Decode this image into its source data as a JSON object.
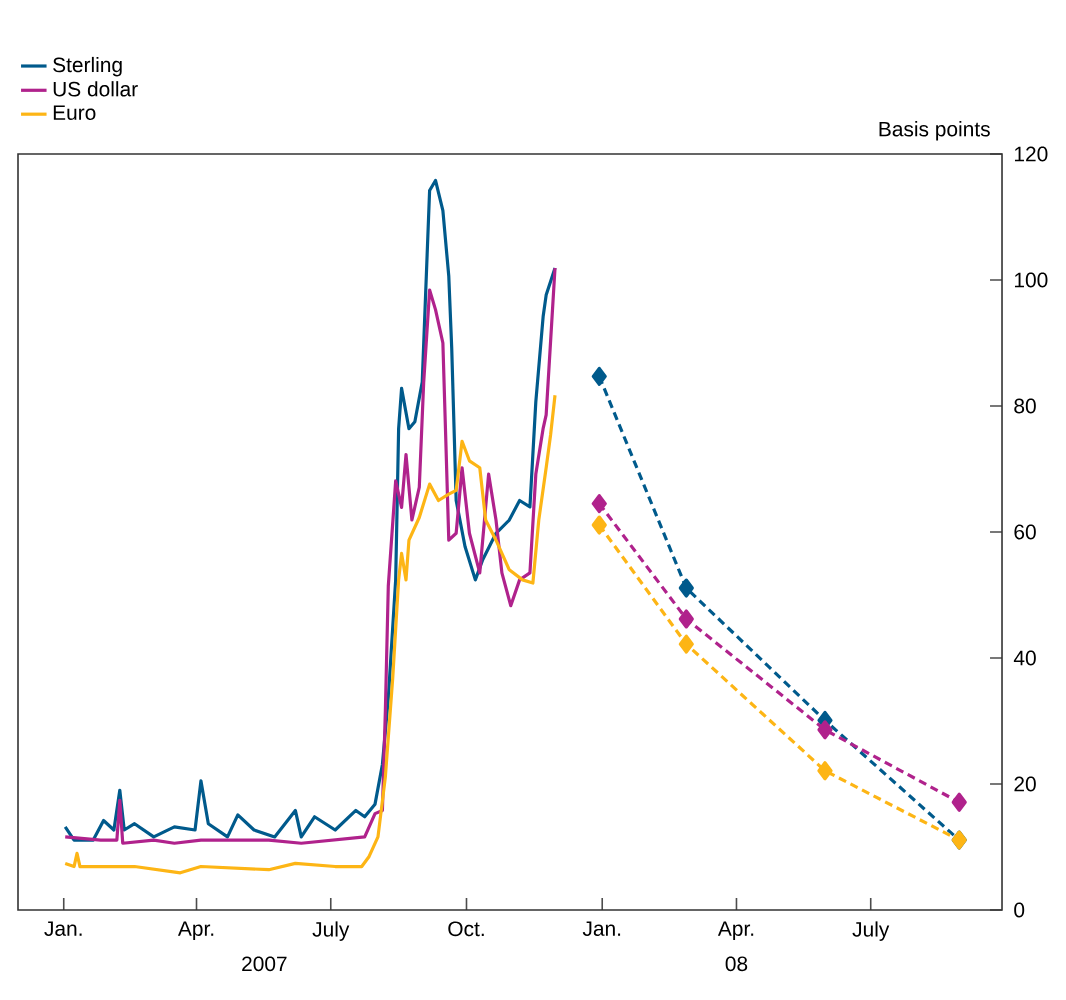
{
  "chart_data": {
    "type": "line",
    "ylabel": "Basis points",
    "legend": "top left",
    "grid": false,
    "xlim": [
      "2006-12-01",
      "2008-09-28"
    ],
    "ylim": [
      0,
      120
    ],
    "yticks": [
      0,
      20,
      40,
      60,
      80,
      100,
      120
    ],
    "xticks": [
      {
        "value": "2007-01-01",
        "label": "Jan."
      },
      {
        "value": "2007-04-01",
        "label": "Apr."
      },
      {
        "value": "2007-07-01",
        "label": "July"
      },
      {
        "value": "2007-10-01",
        "label": "Oct."
      },
      {
        "value": "2008-01-01",
        "label": "Jan."
      },
      {
        "value": "2008-04-01",
        "label": "Apr."
      },
      {
        "value": "2008-07-01",
        "label": "July"
      }
    ],
    "annotations": [
      "2007",
      "08"
    ],
    "series": [
      {
        "name": "Sterling",
        "color": "#005a8c",
        "x": [
          "2007-01-02",
          "2007-01-08",
          "2007-01-21",
          "2007-01-28",
          "2007-02-04",
          "2007-02-08",
          "2007-02-11",
          "2007-02-18",
          "2007-03-03",
          "2007-03-17",
          "2007-03-31",
          "2007-04-04",
          "2007-04-09",
          "2007-04-22",
          "2007-04-29",
          "2007-05-10",
          "2007-05-24",
          "2007-06-07",
          "2007-06-11",
          "2007-06-20",
          "2007-07-04",
          "2007-07-18",
          "2007-07-24",
          "2007-07-31",
          "2007-08-05",
          "2007-08-09",
          "2007-08-14",
          "2007-08-16",
          "2007-08-18",
          "2007-08-23",
          "2007-08-27",
          "2007-09-01",
          "2007-09-06",
          "2007-09-10",
          "2007-09-15",
          "2007-09-19",
          "2007-09-21",
          "2007-09-24",
          "2007-09-30",
          "2007-10-07",
          "2007-10-12",
          "2007-10-21",
          "2007-10-30",
          "2007-11-06",
          "2007-11-13",
          "2007-11-17",
          "2007-11-22",
          "2007-11-24",
          "2007-11-30"
        ],
        "values": [
          13.2,
          11.1,
          11.1,
          14.2,
          12.7,
          19.0,
          12.7,
          13.7,
          11.6,
          13.2,
          12.7,
          20.5,
          13.7,
          11.6,
          15.1,
          12.7,
          11.6,
          15.8,
          11.6,
          14.8,
          12.7,
          15.8,
          14.8,
          16.8,
          23.1,
          33.6,
          52.4,
          76.4,
          82.8,
          76.4,
          77.5,
          83.8,
          114.2,
          115.8,
          111.0,
          100.6,
          89.1,
          65.0,
          57.7,
          52.4,
          55.6,
          59.8,
          61.9,
          65.0,
          64.0,
          80.7,
          94.3,
          97.6,
          101.9
        ]
      },
      {
        "name": "US dollar",
        "color": "#b0228c",
        "x": [
          "2007-01-02",
          "2007-01-26",
          "2007-02-06",
          "2007-02-08",
          "2007-02-10",
          "2007-03-03",
          "2007-03-17",
          "2007-04-04",
          "2007-05-20",
          "2007-06-11",
          "2007-07-24",
          "2007-07-31",
          "2007-08-05",
          "2007-08-07",
          "2007-08-09",
          "2007-08-14",
          "2007-08-18",
          "2007-08-21",
          "2007-08-25",
          "2007-08-30",
          "2007-09-02",
          "2007-09-06",
          "2007-09-10",
          "2007-09-15",
          "2007-09-17",
          "2007-09-19",
          "2007-09-24",
          "2007-09-28",
          "2007-10-03",
          "2007-10-10",
          "2007-10-16",
          "2007-10-21",
          "2007-10-25",
          "2007-10-31",
          "2007-11-06",
          "2007-11-13",
          "2007-11-17",
          "2007-11-22",
          "2007-11-24",
          "2007-11-30"
        ],
        "values": [
          11.6,
          11.1,
          11.1,
          17.4,
          10.6,
          11.1,
          10.6,
          11.1,
          11.1,
          10.6,
          11.6,
          15.3,
          15.8,
          31.5,
          51.4,
          68.1,
          63.9,
          72.3,
          61.9,
          67.1,
          83.8,
          98.4,
          95.3,
          90.0,
          74.4,
          58.7,
          59.8,
          70.2,
          59.8,
          53.5,
          69.2,
          61.9,
          53.5,
          48.3,
          52.4,
          53.5,
          69.2,
          76.5,
          78.6,
          101.9
        ]
      },
      {
        "name": "Euro",
        "color": "#fdb515",
        "x": [
          "2007-01-02",
          "2007-01-08",
          "2007-01-10",
          "2007-01-12",
          "2007-02-18",
          "2007-03-21",
          "2007-04-04",
          "2007-05-20",
          "2007-06-07",
          "2007-07-04",
          "2007-07-22",
          "2007-07-27",
          "2007-08-02",
          "2007-08-07",
          "2007-08-12",
          "2007-08-16",
          "2007-08-18",
          "2007-08-21",
          "2007-08-23",
          "2007-08-30",
          "2007-09-06",
          "2007-09-12",
          "2007-09-19",
          "2007-09-24",
          "2007-09-28",
          "2007-10-03",
          "2007-10-10",
          "2007-10-14",
          "2007-10-21",
          "2007-10-30",
          "2007-11-08",
          "2007-11-15",
          "2007-11-19",
          "2007-11-24",
          "2007-11-27",
          "2007-11-30"
        ],
        "values": [
          7.4,
          6.9,
          9.0,
          6.9,
          6.9,
          5.9,
          6.9,
          6.4,
          7.4,
          6.9,
          6.9,
          8.5,
          11.6,
          21.1,
          36.8,
          52.4,
          56.6,
          52.4,
          58.7,
          62.3,
          67.6,
          65.0,
          66.0,
          66.6,
          74.4,
          71.3,
          70.2,
          61.9,
          58.7,
          54.0,
          52.4,
          51.9,
          61.9,
          70.2,
          75.4,
          81.7
        ]
      },
      {
        "color": "#005a8c",
        "line_style": "dashed",
        "marker": "diamond",
        "x": [
          "2007-12-30",
          "2008-02-27",
          "2008-05-31",
          "2008-08-30"
        ],
        "values": [
          84.7,
          51.1,
          30.1,
          11.1
        ]
      },
      {
        "color": "#b0228c",
        "line_style": "dashed",
        "marker": "diamond",
        "x": [
          "2007-12-30",
          "2008-02-27",
          "2008-05-31",
          "2008-08-30"
        ],
        "values": [
          64.5,
          46.2,
          28.6,
          17.1
        ]
      },
      {
        "color": "#fdb515",
        "line_style": "dashed",
        "marker": "diamond",
        "x": [
          "2007-12-30",
          "2008-02-27",
          "2008-05-31",
          "2008-08-30"
        ],
        "values": [
          61.1,
          42.2,
          22.1,
          11.1
        ]
      }
    ]
  }
}
